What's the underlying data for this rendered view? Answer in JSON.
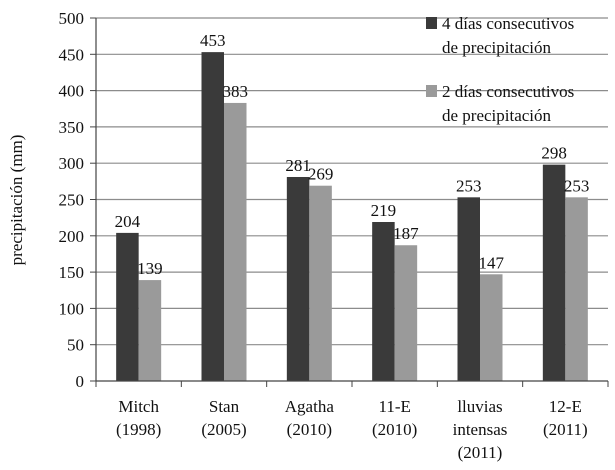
{
  "chart_data": {
    "type": "bar",
    "title": "",
    "xlabel": "",
    "ylabel": "precipitación (mm)",
    "ylim": [
      0,
      500
    ],
    "yticks": [
      0,
      50,
      100,
      150,
      200,
      250,
      300,
      350,
      400,
      450,
      500
    ],
    "grid": true,
    "legend_position": "top-right",
    "categories": [
      [
        "Mitch",
        "(1998)"
      ],
      [
        "Stan",
        "(2005)"
      ],
      [
        "Agatha",
        "(2010)"
      ],
      [
        "11-E",
        "(2010)"
      ],
      [
        "lluvias",
        "intensas",
        "(2011)"
      ],
      [
        "12-E",
        "(2011)"
      ]
    ],
    "series": [
      {
        "name": [
          "4 días consecutivos",
          "de precipitación"
        ],
        "color": "#3a3a3a",
        "values": [
          204,
          453,
          281,
          219,
          253,
          298
        ]
      },
      {
        "name": [
          "2 días consecutivos",
          "de precipitación"
        ],
        "color": "#9a9a9a",
        "values": [
          139,
          383,
          269,
          187,
          147,
          253
        ]
      }
    ]
  }
}
